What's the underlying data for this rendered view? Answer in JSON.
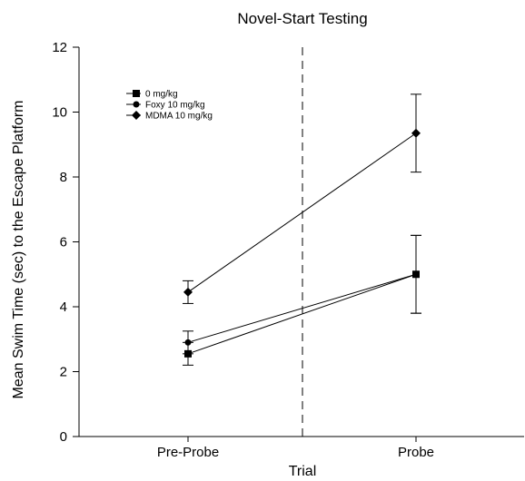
{
  "chart_data": {
    "type": "line",
    "title": "Novel-Start Testing",
    "xlabel": "Trial",
    "ylabel": "Mean Swim Time (sec) to the Escape Platform",
    "categories": [
      "Pre-Probe",
      "Probe"
    ],
    "ylim": [
      0,
      12
    ],
    "yticks": [
      0,
      2,
      4,
      6,
      8,
      10,
      12
    ],
    "grid": false,
    "legend_position": "top-left",
    "divider": "dashed vertical line between Pre-Probe and Probe",
    "series": [
      {
        "name": "0 mg/kg",
        "marker": "square",
        "values": [
          2.55,
          5.0
        ],
        "error": [
          0.35,
          1.2
        ]
      },
      {
        "name": "Foxy 10 mg/kg",
        "marker": "circle",
        "values": [
          2.9,
          5.0
        ],
        "error": [
          0.35,
          1.2
        ]
      },
      {
        "name": "MDMA 10 mg/kg",
        "marker": "diamond",
        "values": [
          4.45,
          9.35
        ],
        "error": [
          0.35,
          1.2
        ]
      }
    ]
  }
}
